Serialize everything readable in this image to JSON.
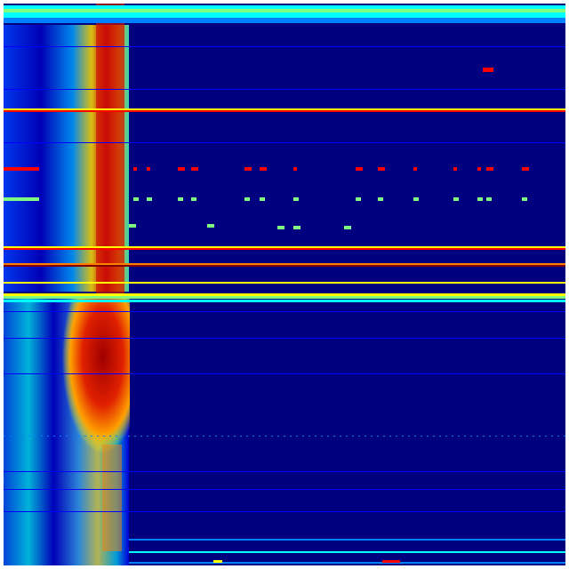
{
  "colormap": {
    "name": "jet",
    "colors": [
      "#00007f",
      "#0000ff",
      "#007fff",
      "#00ffff",
      "#7fff7f",
      "#ffff00",
      "#ff7f00",
      "#ff0000",
      "#7f0000"
    ]
  },
  "background_color": "#00007f"
}
